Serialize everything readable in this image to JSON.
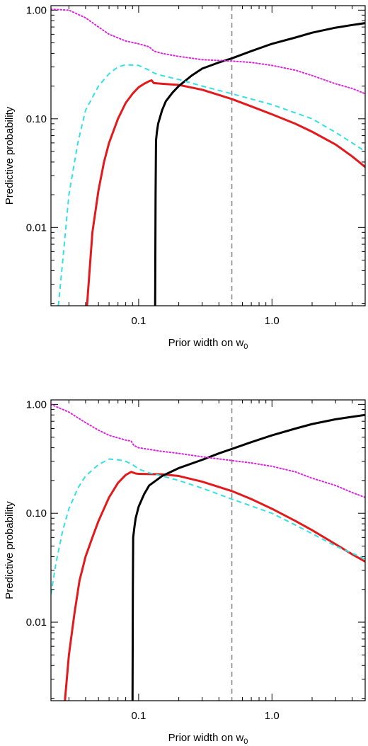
{
  "chart_data": [
    {
      "type": "line",
      "xlabel": "Prior width on w",
      "xlabel_subscript": "0",
      "ylabel": "Predictive probability",
      "xscale": "log",
      "yscale": "log",
      "xlim": [
        0.022,
        5.0
      ],
      "ylim": [
        0.0019,
        1.1
      ],
      "x_ticks": [
        {
          "value": 0.1,
          "label": "0.1"
        },
        {
          "value": 1.0,
          "label": "1.0"
        }
      ],
      "y_ticks": [
        {
          "value": 0.01,
          "label": "0.01"
        },
        {
          "value": 0.1,
          "label": "0.10"
        },
        {
          "value": 1.0,
          "label": "1.00"
        }
      ],
      "vline": {
        "x": 0.5,
        "color": "#888888",
        "style": "dashed"
      },
      "series": [
        {
          "color": "#e31a1c",
          "style": "solid",
          "points": [
            [
              0.041,
              0.0019
            ],
            [
              0.045,
              0.009
            ],
            [
              0.05,
              0.022
            ],
            [
              0.055,
              0.04
            ],
            [
              0.06,
              0.06
            ],
            [
              0.07,
              0.1
            ],
            [
              0.08,
              0.14
            ],
            [
              0.09,
              0.17
            ],
            [
              0.1,
              0.195
            ],
            [
              0.11,
              0.21
            ],
            [
              0.12,
              0.222
            ],
            [
              0.125,
              0.226
            ],
            [
              0.13,
              0.213
            ],
            [
              0.15,
              0.21
            ],
            [
              0.2,
              0.205
            ],
            [
              0.3,
              0.185
            ],
            [
              0.5,
              0.152
            ],
            [
              0.7,
              0.13
            ],
            [
              1.0,
              0.11
            ],
            [
              1.5,
              0.09
            ],
            [
              2.0,
              0.076
            ],
            [
              3.0,
              0.058
            ],
            [
              4.0,
              0.045
            ],
            [
              5.0,
              0.036
            ]
          ]
        },
        {
          "color": "#000000",
          "style": "solid",
          "points": [
            [
              0.133,
              0.0019
            ],
            [
              0.134,
              0.02
            ],
            [
              0.135,
              0.063
            ],
            [
              0.137,
              0.075
            ],
            [
              0.14,
              0.09
            ],
            [
              0.15,
              0.12
            ],
            [
              0.16,
              0.145
            ],
            [
              0.18,
              0.175
            ],
            [
              0.2,
              0.2
            ],
            [
              0.25,
              0.25
            ],
            [
              0.3,
              0.29
            ],
            [
              0.4,
              0.33
            ],
            [
              0.5,
              0.36
            ],
            [
              0.7,
              0.42
            ],
            [
              1.0,
              0.49
            ],
            [
              1.5,
              0.56
            ],
            [
              2.0,
              0.62
            ],
            [
              3.0,
              0.69
            ],
            [
              4.0,
              0.73
            ],
            [
              5.0,
              0.76
            ]
          ]
        },
        {
          "color": "#33e0e6",
          "style": "dashed",
          "points": [
            [
              0.025,
              0.0019
            ],
            [
              0.027,
              0.005
            ],
            [
              0.03,
              0.02
            ],
            [
              0.035,
              0.06
            ],
            [
              0.04,
              0.12
            ],
            [
              0.05,
              0.2
            ],
            [
              0.06,
              0.26
            ],
            [
              0.07,
              0.3
            ],
            [
              0.08,
              0.315
            ],
            [
              0.1,
              0.31
            ],
            [
              0.12,
              0.28
            ],
            [
              0.13,
              0.265
            ],
            [
              0.14,
              0.255
            ],
            [
              0.2,
              0.23
            ],
            [
              0.3,
              0.2
            ],
            [
              0.5,
              0.17
            ],
            [
              1.0,
              0.135
            ],
            [
              2.0,
              0.1
            ],
            [
              3.0,
              0.075
            ],
            [
              4.0,
              0.06
            ],
            [
              5.0,
              0.05
            ]
          ]
        },
        {
          "color": "#e020e0",
          "style": "dotted",
          "points": [
            [
              0.022,
              1.02
            ],
            [
              0.03,
              1.0
            ],
            [
              0.04,
              0.85
            ],
            [
              0.05,
              0.7
            ],
            [
              0.06,
              0.6
            ],
            [
              0.08,
              0.52
            ],
            [
              0.1,
              0.49
            ],
            [
              0.12,
              0.46
            ],
            [
              0.13,
              0.42
            ],
            [
              0.15,
              0.4
            ],
            [
              0.2,
              0.375
            ],
            [
              0.3,
              0.35
            ],
            [
              0.5,
              0.34
            ],
            [
              0.7,
              0.33
            ],
            [
              1.0,
              0.31
            ],
            [
              1.5,
              0.28
            ],
            [
              2.0,
              0.25
            ],
            [
              3.0,
              0.21
            ],
            [
              4.0,
              0.19
            ],
            [
              5.0,
              0.17
            ]
          ]
        }
      ]
    },
    {
      "type": "line",
      "xlabel": "Prior width on w",
      "xlabel_subscript": "0",
      "ylabel": "Predictive probability",
      "xscale": "log",
      "yscale": "log",
      "xlim": [
        0.022,
        5.0
      ],
      "ylim": [
        0.0019,
        1.1
      ],
      "x_ticks": [
        {
          "value": 0.1,
          "label": "0.1"
        },
        {
          "value": 1.0,
          "label": "1.0"
        }
      ],
      "y_ticks": [
        {
          "value": 0.01,
          "label": "0.01"
        },
        {
          "value": 0.1,
          "label": "0.10"
        },
        {
          "value": 1.0,
          "label": "1.00"
        }
      ],
      "vline": {
        "x": 0.5,
        "color": "#888888",
        "style": "dashed"
      },
      "series": [
        {
          "color": "#e31a1c",
          "style": "solid",
          "points": [
            [
              0.028,
              0.0019
            ],
            [
              0.03,
              0.005
            ],
            [
              0.033,
              0.012
            ],
            [
              0.036,
              0.024
            ],
            [
              0.04,
              0.04
            ],
            [
              0.045,
              0.06
            ],
            [
              0.05,
              0.085
            ],
            [
              0.06,
              0.14
            ],
            [
              0.07,
              0.19
            ],
            [
              0.08,
              0.225
            ],
            [
              0.088,
              0.24
            ],
            [
              0.095,
              0.232
            ],
            [
              0.1,
              0.23
            ],
            [
              0.15,
              0.228
            ],
            [
              0.2,
              0.22
            ],
            [
              0.3,
              0.195
            ],
            [
              0.5,
              0.16
            ],
            [
              0.7,
              0.135
            ],
            [
              1.0,
              0.11
            ],
            [
              1.5,
              0.085
            ],
            [
              2.0,
              0.07
            ],
            [
              3.0,
              0.052
            ],
            [
              4.0,
              0.042
            ],
            [
              5.0,
              0.036
            ]
          ]
        },
        {
          "color": "#000000",
          "style": "solid",
          "points": [
            [
              0.09,
              0.0019
            ],
            [
              0.0905,
              0.02
            ],
            [
              0.091,
              0.06
            ],
            [
              0.093,
              0.075
            ],
            [
              0.095,
              0.09
            ],
            [
              0.1,
              0.115
            ],
            [
              0.11,
              0.15
            ],
            [
              0.12,
              0.18
            ],
            [
              0.15,
              0.22
            ],
            [
              0.2,
              0.26
            ],
            [
              0.3,
              0.31
            ],
            [
              0.4,
              0.355
            ],
            [
              0.5,
              0.39
            ],
            [
              0.7,
              0.45
            ],
            [
              1.0,
              0.52
            ],
            [
              1.5,
              0.6
            ],
            [
              2.0,
              0.66
            ],
            [
              3.0,
              0.73
            ],
            [
              4.0,
              0.77
            ],
            [
              5.0,
              0.8
            ]
          ]
        },
        {
          "color": "#33e0e6",
          "style": "dashed",
          "points": [
            [
              0.022,
              0.018
            ],
            [
              0.024,
              0.035
            ],
            [
              0.027,
              0.07
            ],
            [
              0.03,
              0.11
            ],
            [
              0.035,
              0.17
            ],
            [
              0.04,
              0.22
            ],
            [
              0.05,
              0.28
            ],
            [
              0.06,
              0.315
            ],
            [
              0.07,
              0.31
            ],
            [
              0.08,
              0.3
            ],
            [
              0.09,
              0.28
            ],
            [
              0.1,
              0.255
            ],
            [
              0.12,
              0.235
            ],
            [
              0.15,
              0.22
            ],
            [
              0.2,
              0.2
            ],
            [
              0.3,
              0.17
            ],
            [
              0.5,
              0.135
            ],
            [
              1.0,
              0.1
            ],
            [
              1.5,
              0.078
            ],
            [
              2.0,
              0.065
            ],
            [
              3.0,
              0.05
            ],
            [
              4.0,
              0.043
            ],
            [
              5.0,
              0.038
            ]
          ]
        },
        {
          "color": "#e020e0",
          "style": "dotted",
          "points": [
            [
              0.022,
              1.0
            ],
            [
              0.03,
              0.85
            ],
            [
              0.04,
              0.68
            ],
            [
              0.05,
              0.58
            ],
            [
              0.06,
              0.52
            ],
            [
              0.08,
              0.47
            ],
            [
              0.088,
              0.46
            ],
            [
              0.092,
              0.42
            ],
            [
              0.1,
              0.4
            ],
            [
              0.15,
              0.37
            ],
            [
              0.2,
              0.355
            ],
            [
              0.3,
              0.33
            ],
            [
              0.5,
              0.305
            ],
            [
              0.7,
              0.29
            ],
            [
              1.0,
              0.27
            ],
            [
              1.5,
              0.24
            ],
            [
              2.0,
              0.21
            ],
            [
              3.0,
              0.18
            ],
            [
              4.0,
              0.155
            ],
            [
              5.0,
              0.14
            ]
          ]
        }
      ]
    }
  ]
}
